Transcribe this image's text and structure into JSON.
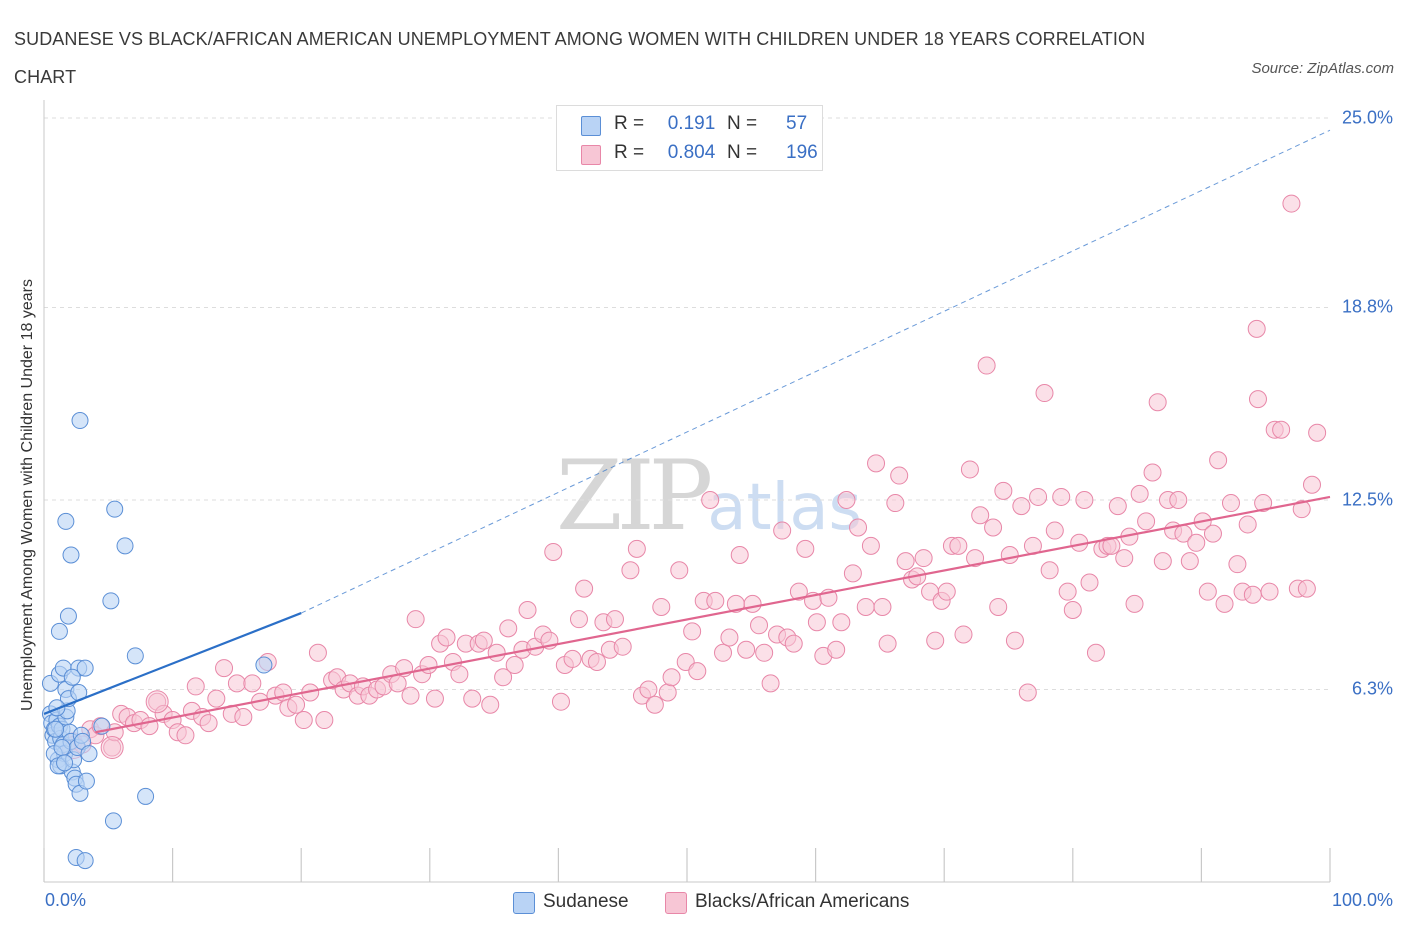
{
  "title": "SUDANESE VS BLACK/AFRICAN AMERICAN UNEMPLOYMENT AMONG WOMEN WITH CHILDREN UNDER 18 YEARS CORRELATION CHART",
  "source": "Source: ZipAtlas.com",
  "watermark": {
    "zip": "ZIP",
    "atlas": "atlas"
  },
  "colors": {
    "blue": "#5b8fd6",
    "blue_fill": "#b9d3f5",
    "blue_line": "#2b6fc7",
    "pink": "#e887a8",
    "pink_fill": "#f7c6d5",
    "pink_line": "#e0668f",
    "tick_text": "#3a6fc4",
    "grid": "#dddddd"
  },
  "legend": {
    "rows": [
      {
        "r_label": "R =",
        "r_value": "0.191",
        "n_label": "N =",
        "n_value": "57"
      },
      {
        "r_label": "R =",
        "r_value": "0.804",
        "n_label": "N =",
        "n_value": "196"
      }
    ]
  },
  "bottom_legend": [
    "Sudanese",
    "Blacks/African Americans"
  ],
  "chart_data": {
    "type": "scatter",
    "title": "SUDANESE VS BLACK/AFRICAN AMERICAN UNEMPLOYMENT AMONG WOMEN WITH CHILDREN UNDER 18 YEARS CORRELATION CHART",
    "xlabel": "",
    "ylabel": "Unemployment Among Women with Children Under 18 years",
    "x_tick_labels": [
      "0.0%",
      "100.0%"
    ],
    "y_tick_labels": [
      "6.3%",
      "12.5%",
      "18.8%",
      "25.0%"
    ],
    "y_ticks": [
      6.3,
      12.5,
      18.8,
      25.0
    ],
    "xlim": [
      0,
      100
    ],
    "ylim": [
      0,
      25.0
    ],
    "grid": true,
    "legend_position": "top-center",
    "series": [
      {
        "name": "Sudanese",
        "trend": {
          "x": [
            0,
            20
          ],
          "y": [
            5.5,
            8.8
          ]
        },
        "trend_extension": {
          "x": [
            20,
            100
          ],
          "y": [
            8.8,
            24.6
          ]
        },
        "points": [
          [
            0.5,
            6.5
          ],
          [
            0.5,
            5.5
          ],
          [
            0.6,
            5.2
          ],
          [
            0.7,
            4.8
          ],
          [
            0.8,
            5.0
          ],
          [
            0.9,
            4.6
          ],
          [
            1.0,
            5.3
          ],
          [
            1.1,
            4.0
          ],
          [
            1.2,
            5.1
          ],
          [
            1.3,
            4.7
          ],
          [
            1.3,
            3.8
          ],
          [
            1.4,
            5.0
          ],
          [
            1.5,
            4.5
          ],
          [
            1.6,
            4.2
          ],
          [
            1.7,
            5.4
          ],
          [
            1.2,
            8.2
          ],
          [
            1.2,
            6.8
          ],
          [
            1.5,
            7.0
          ],
          [
            1.7,
            6.3
          ],
          [
            1.8,
            5.6
          ],
          [
            1.9,
            6.0
          ],
          [
            2.0,
            4.9
          ],
          [
            2.1,
            4.6
          ],
          [
            2.2,
            3.6
          ],
          [
            2.3,
            4.0
          ],
          [
            2.4,
            3.4
          ],
          [
            2.5,
            3.2
          ],
          [
            2.6,
            4.4
          ],
          [
            2.7,
            6.2
          ],
          [
            2.8,
            2.9
          ],
          [
            2.9,
            4.8
          ],
          [
            1.7,
            11.8
          ],
          [
            2.1,
            10.7
          ],
          [
            1.9,
            8.7
          ],
          [
            2.5,
            0.8
          ],
          [
            2.7,
            7.0
          ],
          [
            3.0,
            4.6
          ],
          [
            3.3,
            3.3
          ],
          [
            2.8,
            15.1
          ],
          [
            3.2,
            7.0
          ],
          [
            3.5,
            4.2
          ],
          [
            3.2,
            0.7
          ],
          [
            4.5,
            5.1
          ],
          [
            5.2,
            9.2
          ],
          [
            5.5,
            12.2
          ],
          [
            6.3,
            11.0
          ],
          [
            7.1,
            7.4
          ],
          [
            5.4,
            2.0
          ],
          [
            7.9,
            2.8
          ],
          [
            17.1,
            7.1
          ],
          [
            0.8,
            4.2
          ],
          [
            1.0,
            5.7
          ],
          [
            1.1,
            3.8
          ],
          [
            1.4,
            4.4
          ],
          [
            1.6,
            3.9
          ],
          [
            0.9,
            5.0
          ],
          [
            2.2,
            6.7
          ]
        ]
      },
      {
        "name": "Blacks/African Americans",
        "trend": {
          "x": [
            4,
            100
          ],
          "y": [
            4.9,
            12.6
          ]
        },
        "points": [
          [
            2.3,
            4.6
          ],
          [
            3.0,
            4.5
          ],
          [
            3.6,
            5.0
          ],
          [
            4.0,
            4.8
          ],
          [
            4.4,
            5.1
          ],
          [
            5.3,
            4.4
          ],
          [
            5.5,
            4.9
          ],
          [
            6.0,
            5.5
          ],
          [
            6.5,
            5.4
          ],
          [
            7.0,
            5.2
          ],
          [
            7.5,
            5.3
          ],
          [
            8.2,
            5.1
          ],
          [
            8.8,
            5.9
          ],
          [
            9.3,
            5.5
          ],
          [
            10.0,
            5.3
          ],
          [
            10.4,
            4.9
          ],
          [
            11.0,
            4.8
          ],
          [
            11.5,
            5.6
          ],
          [
            11.8,
            6.4
          ],
          [
            12.3,
            5.4
          ],
          [
            12.8,
            5.2
          ],
          [
            13.4,
            6.0
          ],
          [
            14.0,
            7.0
          ],
          [
            14.6,
            5.5
          ],
          [
            15.0,
            6.5
          ],
          [
            15.5,
            5.4
          ],
          [
            16.2,
            6.5
          ],
          [
            16.8,
            5.9
          ],
          [
            17.4,
            7.2
          ],
          [
            18.0,
            6.1
          ],
          [
            18.6,
            6.2
          ],
          [
            19.0,
            5.7
          ],
          [
            19.6,
            5.8
          ],
          [
            20.2,
            5.3
          ],
          [
            20.7,
            6.2
          ],
          [
            21.3,
            7.5
          ],
          [
            21.8,
            5.3
          ],
          [
            22.4,
            6.6
          ],
          [
            22.8,
            6.7
          ],
          [
            23.3,
            6.3
          ],
          [
            23.8,
            6.5
          ],
          [
            24.4,
            6.1
          ],
          [
            24.8,
            6.4
          ],
          [
            25.3,
            6.1
          ],
          [
            25.9,
            6.3
          ],
          [
            26.4,
            6.4
          ],
          [
            27.0,
            6.8
          ],
          [
            27.5,
            6.5
          ],
          [
            28.0,
            7.0
          ],
          [
            28.5,
            6.1
          ],
          [
            28.9,
            8.6
          ],
          [
            29.4,
            6.8
          ],
          [
            29.9,
            7.1
          ],
          [
            30.4,
            6.0
          ],
          [
            30.8,
            7.8
          ],
          [
            31.3,
            8.0
          ],
          [
            31.8,
            7.2
          ],
          [
            32.3,
            6.8
          ],
          [
            32.8,
            7.8
          ],
          [
            33.3,
            6.0
          ],
          [
            33.8,
            7.8
          ],
          [
            34.2,
            7.9
          ],
          [
            34.7,
            5.8
          ],
          [
            35.2,
            7.5
          ],
          [
            35.7,
            6.7
          ],
          [
            36.1,
            8.3
          ],
          [
            36.6,
            7.1
          ],
          [
            37.2,
            7.6
          ],
          [
            37.6,
            8.9
          ],
          [
            38.2,
            7.7
          ],
          [
            38.8,
            8.1
          ],
          [
            39.3,
            7.9
          ],
          [
            39.6,
            10.8
          ],
          [
            40.2,
            5.9
          ],
          [
            40.5,
            7.1
          ],
          [
            41.1,
            7.3
          ],
          [
            41.6,
            8.6
          ],
          [
            42.0,
            9.6
          ],
          [
            42.5,
            7.3
          ],
          [
            43.0,
            7.2
          ],
          [
            43.5,
            8.5
          ],
          [
            44.0,
            7.6
          ],
          [
            44.4,
            8.6
          ],
          [
            45.0,
            7.7
          ],
          [
            45.6,
            10.2
          ],
          [
            46.1,
            10.9
          ],
          [
            46.5,
            6.1
          ],
          [
            47.0,
            6.3
          ],
          [
            47.5,
            5.8
          ],
          [
            48.0,
            9.0
          ],
          [
            48.5,
            6.2
          ],
          [
            48.8,
            6.7
          ],
          [
            49.4,
            10.2
          ],
          [
            49.9,
            7.2
          ],
          [
            50.4,
            8.2
          ],
          [
            50.8,
            6.9
          ],
          [
            51.3,
            9.2
          ],
          [
            51.8,
            12.5
          ],
          [
            52.2,
            9.2
          ],
          [
            52.8,
            7.5
          ],
          [
            53.3,
            8.0
          ],
          [
            53.8,
            9.1
          ],
          [
            54.1,
            10.7
          ],
          [
            54.6,
            7.6
          ],
          [
            55.1,
            9.1
          ],
          [
            55.6,
            8.4
          ],
          [
            56.0,
            7.5
          ],
          [
            56.5,
            6.5
          ],
          [
            57.0,
            8.1
          ],
          [
            57.4,
            11.5
          ],
          [
            57.8,
            8.0
          ],
          [
            58.3,
            7.8
          ],
          [
            58.7,
            9.5
          ],
          [
            59.2,
            10.9
          ],
          [
            59.8,
            9.2
          ],
          [
            60.1,
            8.5
          ],
          [
            60.6,
            7.4
          ],
          [
            61.0,
            9.3
          ],
          [
            61.6,
            7.6
          ],
          [
            62.0,
            8.5
          ],
          [
            62.4,
            12.5
          ],
          [
            62.9,
            10.1
          ],
          [
            63.3,
            11.6
          ],
          [
            63.9,
            9.0
          ],
          [
            64.3,
            11.0
          ],
          [
            64.7,
            13.7
          ],
          [
            65.2,
            9.0
          ],
          [
            65.6,
            7.8
          ],
          [
            66.2,
            12.4
          ],
          [
            66.5,
            13.3
          ],
          [
            67.0,
            10.5
          ],
          [
            67.5,
            9.9
          ],
          [
            67.9,
            10.0
          ],
          [
            68.4,
            10.6
          ],
          [
            68.9,
            9.5
          ],
          [
            69.3,
            7.9
          ],
          [
            69.8,
            9.2
          ],
          [
            70.2,
            9.5
          ],
          [
            70.6,
            11.0
          ],
          [
            71.1,
            11.0
          ],
          [
            71.5,
            8.1
          ],
          [
            72.0,
            13.5
          ],
          [
            72.4,
            10.6
          ],
          [
            72.8,
            12.0
          ],
          [
            73.3,
            16.9
          ],
          [
            73.8,
            11.6
          ],
          [
            74.2,
            9.0
          ],
          [
            74.6,
            12.8
          ],
          [
            75.1,
            10.7
          ],
          [
            75.5,
            7.9
          ],
          [
            76.0,
            12.3
          ],
          [
            76.5,
            6.2
          ],
          [
            76.9,
            11.0
          ],
          [
            77.3,
            12.6
          ],
          [
            77.8,
            16.0
          ],
          [
            78.2,
            10.2
          ],
          [
            78.6,
            11.5
          ],
          [
            79.1,
            12.6
          ],
          [
            79.6,
            9.5
          ],
          [
            80.0,
            8.9
          ],
          [
            80.5,
            11.1
          ],
          [
            80.9,
            12.5
          ],
          [
            81.3,
            9.8
          ],
          [
            81.8,
            7.5
          ],
          [
            82.3,
            10.9
          ],
          [
            82.7,
            11.0
          ],
          [
            83.0,
            11.0
          ],
          [
            83.5,
            12.3
          ],
          [
            84.0,
            10.6
          ],
          [
            84.4,
            11.3
          ],
          [
            84.8,
            9.1
          ],
          [
            85.2,
            12.7
          ],
          [
            85.7,
            11.8
          ],
          [
            86.2,
            13.4
          ],
          [
            86.6,
            15.7
          ],
          [
            87.0,
            10.5
          ],
          [
            87.4,
            12.5
          ],
          [
            87.8,
            11.5
          ],
          [
            88.2,
            12.5
          ],
          [
            88.6,
            11.4
          ],
          [
            89.1,
            10.5
          ],
          [
            89.6,
            11.1
          ],
          [
            90.1,
            11.8
          ],
          [
            90.5,
            9.5
          ],
          [
            90.9,
            11.4
          ],
          [
            91.3,
            13.8
          ],
          [
            91.8,
            9.1
          ],
          [
            92.3,
            12.4
          ],
          [
            92.8,
            10.4
          ],
          [
            93.2,
            9.5
          ],
          [
            93.6,
            11.7
          ],
          [
            94.0,
            9.4
          ],
          [
            94.4,
            15.8
          ],
          [
            94.8,
            12.4
          ],
          [
            95.3,
            9.5
          ],
          [
            95.7,
            14.8
          ],
          [
            96.2,
            14.8
          ],
          [
            97.0,
            22.2
          ],
          [
            94.3,
            18.1
          ],
          [
            97.5,
            9.6
          ],
          [
            98.2,
            9.6
          ],
          [
            99.0,
            14.7
          ],
          [
            97.8,
            12.2
          ],
          [
            98.6,
            13.0
          ]
        ]
      }
    ]
  }
}
